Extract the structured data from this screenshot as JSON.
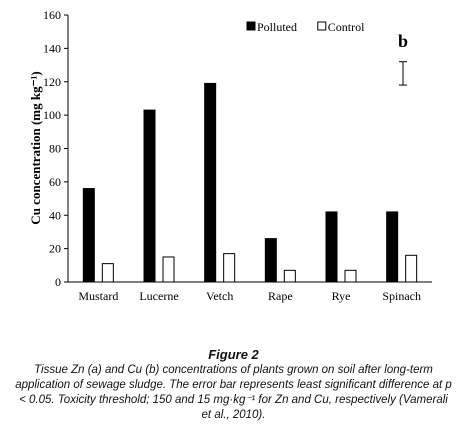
{
  "chart_data": {
    "type": "bar",
    "panel_label": "b",
    "ylabel": "Cu concentration (mg kg⁻¹)",
    "xlabel": "",
    "ylim": [
      0,
      160
    ],
    "ytick_step": 20,
    "categories": [
      "Mustard",
      "Lucerne",
      "Vetch",
      "Rape",
      "Rye",
      "Spinach"
    ],
    "series": [
      {
        "name": "Polluted",
        "color": "#000000",
        "values": [
          56,
          103,
          119,
          26,
          42,
          42
        ]
      },
      {
        "name": "Control",
        "color": "#ffffff",
        "values": [
          11,
          15,
          17,
          7,
          7,
          16
        ]
      }
    ],
    "lsd_error_bar": {
      "center": 125,
      "low": 118,
      "high": 132
    },
    "legend_position": "top-right",
    "grid": false
  },
  "caption": {
    "title": "Figure 2",
    "text": "Tissue Zn (a) and Cu (b) concentrations of plants grown on soil after long-term application of sewage sludge. The error bar represents least significant difference at p < 0.05. Toxicity threshold; 150 and 15 mg·kg⁻¹ for Zn and Cu, respectively (Vamerali et al., 2010)."
  }
}
